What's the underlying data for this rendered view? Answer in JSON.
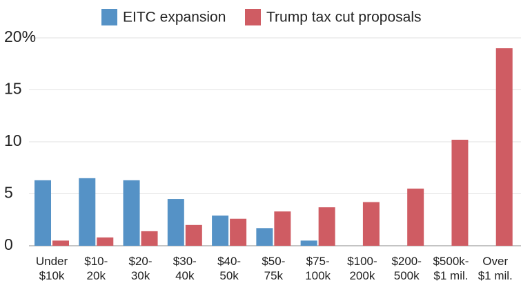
{
  "chart_data": {
    "type": "bar",
    "categories": [
      "Under\n$10k",
      "$10-\n20k",
      "$20-\n30k",
      "$30-\n40k",
      "$40-\n50k",
      "$50-\n75k",
      "$75-\n100k",
      "$100-\n200k",
      "$200-\n500k",
      "$500k-\n$1 mil.",
      "Over\n$1 mil."
    ],
    "series": [
      {
        "name": "EITC expansion",
        "color": "#5592c6",
        "values": [
          6.3,
          6.5,
          6.3,
          4.5,
          2.9,
          1.7,
          0.5,
          0,
          0,
          0,
          0
        ]
      },
      {
        "name": "Trump tax cut proposals",
        "color": "#cf5c63",
        "values": [
          0.5,
          0.8,
          1.4,
          2.0,
          2.6,
          3.3,
          3.7,
          4.2,
          5.5,
          10.2,
          19.0
        ]
      }
    ],
    "ylim": [
      0,
      20
    ],
    "yticks": [
      0,
      5,
      10,
      15,
      {
        "value": 20,
        "label": "20%"
      }
    ],
    "grid": true
  }
}
